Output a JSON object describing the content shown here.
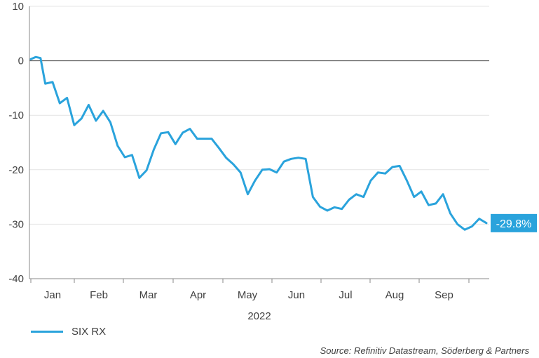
{
  "chart_data": {
    "type": "line",
    "title": "",
    "xlabel": "2022",
    "ylabel": "",
    "ylim": [
      -40,
      10
    ],
    "yticks": [
      10,
      0,
      -10,
      -20,
      -30,
      -40
    ],
    "months": [
      "Jan",
      "Feb",
      "Mar",
      "Apr",
      "May",
      "Jun",
      "Jul",
      "Aug",
      "Sep"
    ],
    "grid": true,
    "end_label": "-29.8%",
    "series": [
      {
        "name": "SIX RX",
        "color": "#2aa3dc",
        "x_unit": "trading day index (day 0 = start of 2022)",
        "x": [
          0,
          2,
          4,
          6,
          9,
          12,
          15,
          18,
          21,
          24,
          27,
          30,
          33,
          36,
          39,
          42,
          45,
          48,
          51,
          54,
          57,
          60,
          63,
          66,
          69,
          72,
          75,
          78,
          81,
          84,
          87,
          90,
          93,
          96,
          99,
          102,
          105,
          108,
          111,
          114,
          117,
          120,
          123,
          126,
          129,
          132,
          135,
          138,
          141,
          144,
          147,
          150,
          153,
          156,
          159,
          162,
          165,
          168,
          171,
          174,
          177,
          180,
          183,
          186,
          189
        ],
        "values": [
          0.3,
          0.7,
          0.5,
          -4.2,
          -3.9,
          -7.8,
          -6.8,
          -11.8,
          -10.6,
          -8.1,
          -11.0,
          -9.2,
          -11.3,
          -15.6,
          -17.7,
          -17.3,
          -21.5,
          -20.1,
          -16.3,
          -13.3,
          -13.1,
          -15.3,
          -13.2,
          -12.5,
          -14.3,
          -14.3,
          -14.3,
          -16.0,
          -17.8,
          -19.0,
          -20.5,
          -24.5,
          -22.0,
          -20.0,
          -19.9,
          -20.5,
          -18.5,
          -18.0,
          -17.8,
          -18.0,
          -25.0,
          -26.8,
          -27.5,
          -26.9,
          -27.2,
          -25.5,
          -24.5,
          -25.0,
          -22.0,
          -20.5,
          -20.7,
          -19.5,
          -19.3,
          -22.0,
          -25.0,
          -24.0,
          -26.5,
          -26.2,
          -24.5,
          -28.0,
          -30.0,
          -31.0,
          -30.4,
          -29.0,
          -29.8
        ]
      }
    ]
  },
  "legend": {
    "label": "SIX RX"
  },
  "source": "Source: Refinitiv Datastream, Söderberg & Partners"
}
